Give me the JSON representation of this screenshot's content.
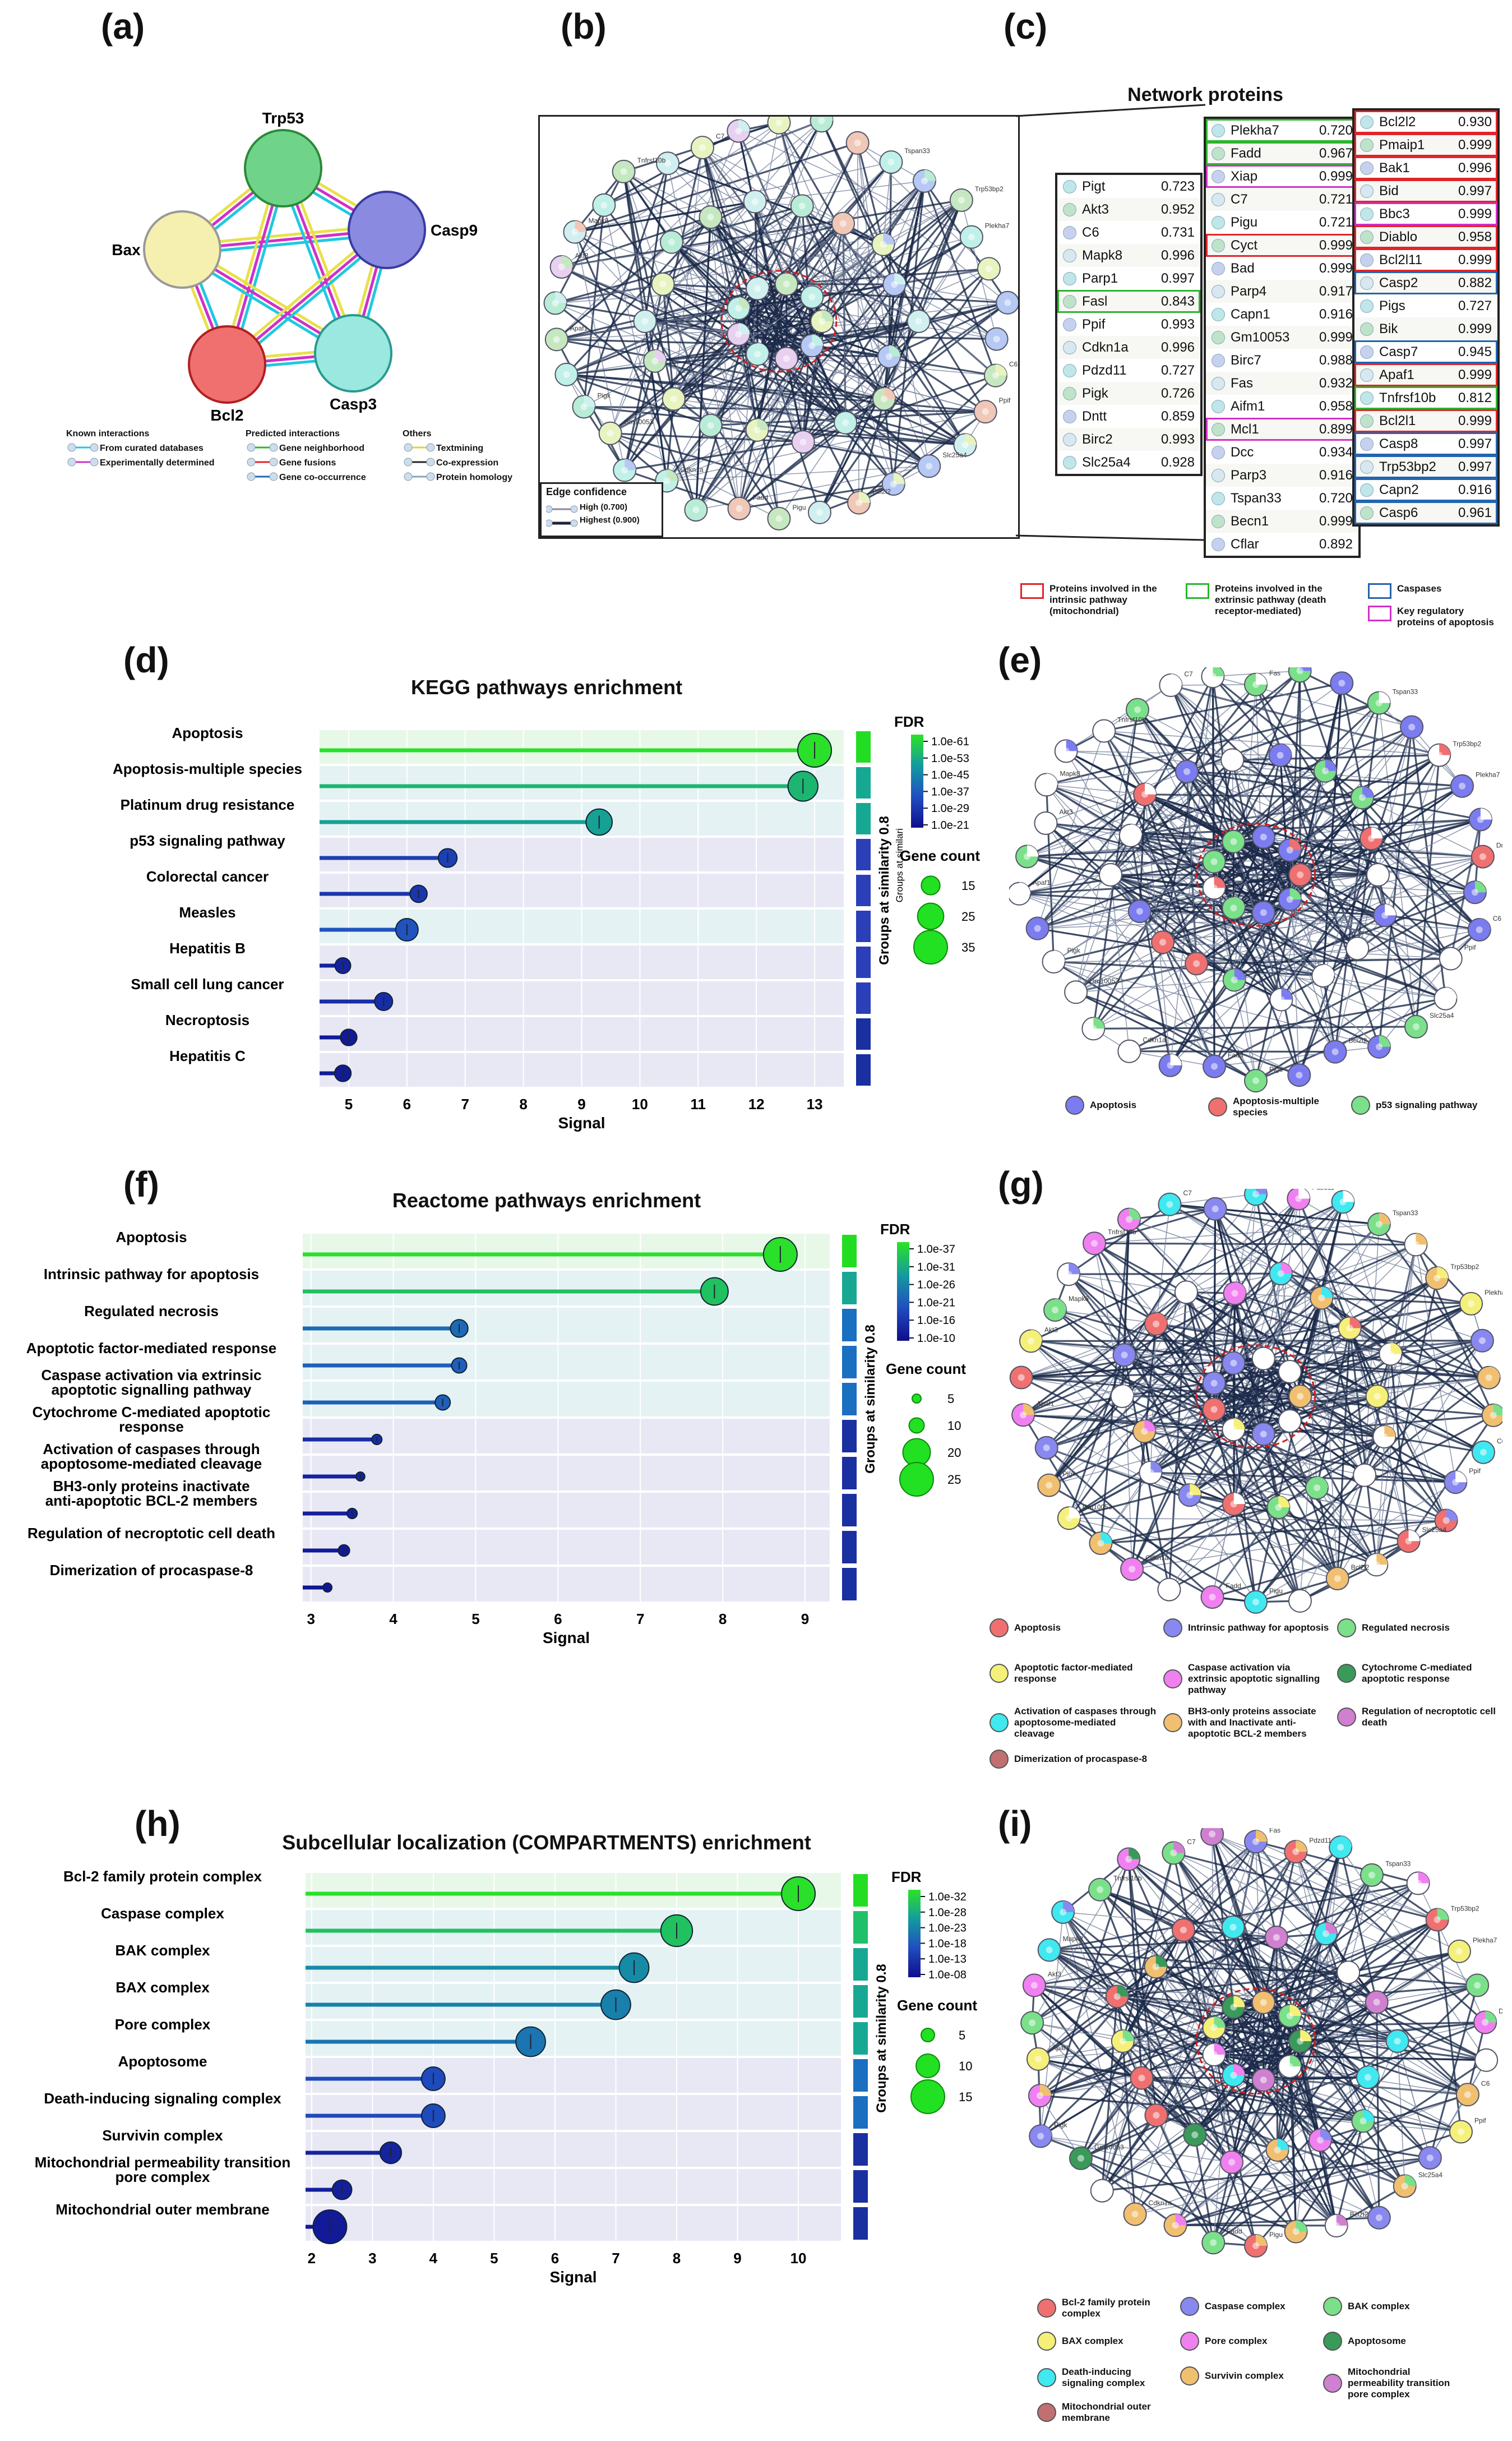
{
  "panel_labels": [
    "(a)",
    "(b)",
    "(c)",
    "(d)",
    "(e)",
    "(f)",
    "(g)",
    "(h)",
    "(i)"
  ],
  "panel_a": {
    "nodes": [
      "Trp53",
      "Bax",
      "Casp9",
      "Bcl2",
      "Casp3"
    ],
    "legend": {
      "known_title": "Known interactions",
      "known": [
        "From curated databases",
        "Experimentally determined"
      ],
      "predicted_title": "Predicted interactions",
      "predicted": [
        "Gene neighborhood",
        "Gene fusions",
        "Gene co-occurrence"
      ],
      "others_title": "Others",
      "others": [
        "Textmining",
        "Co-expression",
        "Protein homology"
      ]
    }
  },
  "panel_b": {
    "edge_title": "Edge confidence",
    "edges": [
      "High (0.700)",
      "Highest (0.900)"
    ],
    "node_labels": [
      "Fas",
      "Pdzd11",
      "Tspan33",
      "Trp53bp2",
      "Plekha7",
      "Dntt",
      "C6",
      "Ppif",
      "Slc25a4",
      "Bcl2l2",
      "Pigu",
      "Fadd",
      "Cdkn1a",
      "Gm10053",
      "Pigk",
      "Apaf1",
      "Akt3",
      "Mapk8",
      "Tnfrsf10b",
      "C7"
    ]
  },
  "panel_c": {
    "title": "Network proteins",
    "col1": [
      [
        "Pigt",
        "0.723"
      ],
      [
        "Akt3",
        "0.952"
      ],
      [
        "C6",
        "0.731"
      ],
      [
        "Mapk8",
        "0.996"
      ],
      [
        "Parp1",
        "0.997"
      ],
      [
        "Fasl",
        "0.843"
      ],
      [
        "Ppif",
        "0.993"
      ],
      [
        "Cdkn1a",
        "0.996"
      ],
      [
        "Pdzd11",
        "0.727"
      ],
      [
        "Pigk",
        "0.726"
      ],
      [
        "Dntt",
        "0.859"
      ],
      [
        "Birc2",
        "0.993"
      ],
      [
        "Slc25a4",
        "0.928"
      ]
    ],
    "col2": [
      [
        "Plekha7",
        "0.720"
      ],
      [
        "Fadd",
        "0.967"
      ],
      [
        "Xiap",
        "0.999"
      ],
      [
        "C7",
        "0.721"
      ],
      [
        "Pigu",
        "0.721"
      ],
      [
        "Cyct",
        "0.999"
      ],
      [
        "Bad",
        "0.999"
      ],
      [
        "Parp4",
        "0.917"
      ],
      [
        "Capn1",
        "0.916"
      ],
      [
        "Gm10053",
        "0.999"
      ],
      [
        "Birc7",
        "0.988"
      ],
      [
        "Fas",
        "0.932"
      ],
      [
        "Aifm1",
        "0.958"
      ],
      [
        "Mcl1",
        "0.899"
      ],
      [
        "Dcc",
        "0.934"
      ],
      [
        "Parp3",
        "0.916"
      ],
      [
        "Tspan33",
        "0.720"
      ],
      [
        "Becn1",
        "0.999"
      ],
      [
        "Cflar",
        "0.892"
      ]
    ],
    "col3": [
      [
        "Bcl2l2",
        "0.930"
      ],
      [
        "Pmaip1",
        "0.999"
      ],
      [
        "Bak1",
        "0.996"
      ],
      [
        "Bid",
        "0.997"
      ],
      [
        "Bbc3",
        "0.999"
      ],
      [
        "Diablo",
        "0.958"
      ],
      [
        "Bcl2l11",
        "0.999"
      ],
      [
        "Casp2",
        "0.882"
      ],
      [
        "Pigs",
        "0.727"
      ],
      [
        "Bik",
        "0.999"
      ],
      [
        "Casp7",
        "0.945"
      ],
      [
        "Apaf1",
        "0.999"
      ],
      [
        "Tnfrsf10b",
        "0.812"
      ],
      [
        "Bcl2l1",
        "0.999"
      ],
      [
        "Casp8",
        "0.997"
      ],
      [
        "Trp53bp2",
        "0.997"
      ],
      [
        "Capn2",
        "0.916"
      ],
      [
        "Casp6",
        "0.961"
      ]
    ],
    "legend": [
      "Proteins involved in the intrinsic pathway (mitochondrial)",
      "Proteins involved in the extrinsic pathway (death receptor-mediated)",
      "Caspases",
      "Key regulatory proteins of apoptosis"
    ],
    "legend_colors": [
      "#e0252a",
      "#2cb52c",
      "#2464b0",
      "#d030c8"
    ]
  },
  "chart_data": [
    {
      "type": "bar",
      "title": "KEGG pathways enrichment",
      "categories": [
        "Apoptosis",
        "Apoptosis-multiple species",
        "Platinum drug resistance",
        "p53 signaling pathway",
        "Colorectal cancer",
        "Measles",
        "Hepatitis B",
        "Small cell lung cancer",
        "Necroptosis",
        "Hepatitis C"
      ],
      "values": [
        13.0,
        12.8,
        9.3,
        6.7,
        6.2,
        6.0,
        4.9,
        5.6,
        5.0,
        4.9
      ],
      "fdr_level": [
        1.0,
        0.8,
        0.7,
        0.25,
        0.2,
        0.35,
        0.1,
        0.15,
        0.05,
        0.05
      ],
      "gene_count": [
        35,
        30,
        25,
        15,
        13,
        20,
        11,
        14,
        12,
        12
      ],
      "xlabel": "Signal",
      "xticks": [
        "5",
        "6",
        "7",
        "8",
        "9",
        "10",
        "11",
        "12",
        "13"
      ],
      "xlim": [
        4.5,
        13.5
      ],
      "fdr_title": "FDR",
      "fdr_ticks": [
        "1.0e-61",
        "1.0e-53",
        "1.0e-45",
        "1.0e-37",
        "1.0e-29",
        "1.0e-21"
      ],
      "size_title": "Gene count",
      "size_ticks": [
        "15",
        "25",
        "35"
      ],
      "group_label": "Groups at similarity 0.8",
      "group_label2": "Groups at similari",
      "group_colors": [
        "#22dd22",
        "#17a893",
        "#17a893",
        "#2a3fb8",
        "#2a3fb8",
        "#2a3fb8",
        "#2a3fb8",
        "#2a3fb8",
        "#1a2fa0",
        "#1a2fa0"
      ]
    },
    {
      "type": "bar",
      "title": "Reactome pathways enrichment",
      "categories": [
        "Apoptosis",
        "Intrinsic pathway for apoptosis",
        "Regulated necrosis",
        "Apoptotic factor-mediated response",
        "Caspase activation via extrinsic apoptotic signalling pathway",
        "Cytochrome C-mediated apoptotic response",
        "Activation of caspases through apoptosome-mediated cleavage",
        "BH3-only proteins inactivate anti-apoptotic BCL-2 members",
        "Regulation of necroptotic cell death",
        "Dimerization of procaspase-8"
      ],
      "values": [
        8.7,
        7.9,
        4.8,
        4.8,
        4.6,
        3.8,
        3.6,
        3.5,
        3.4,
        3.2
      ],
      "fdr_level": [
        1.0,
        0.85,
        0.45,
        0.4,
        0.4,
        0.15,
        0.1,
        0.08,
        0.05,
        0.03
      ],
      "gene_count": [
        25,
        20,
        12,
        10,
        10,
        6,
        5,
        6,
        7,
        5
      ],
      "xlabel": "Signal",
      "xticks": [
        "3",
        "4",
        "5",
        "6",
        "7",
        "8",
        "9"
      ],
      "xlim": [
        2.9,
        9.3
      ],
      "fdr_title": "FDR",
      "fdr_ticks": [
        "1.0e-37",
        "1.0e-31",
        "1.0e-26",
        "1.0e-21",
        "1.0e-16",
        "1.0e-10"
      ],
      "size_title": "Gene count",
      "size_ticks": [
        "5",
        "10",
        "20",
        "25"
      ],
      "group_label": "Groups at similarity 0.8",
      "group_colors": [
        "#22dd22",
        "#17a893",
        "#1a6fc0",
        "#1a6fc0",
        "#1a6fc0",
        "#1a2fa0",
        "#1a2fa0",
        "#1a2fa0",
        "#1a2fa0",
        "#1a2fa0"
      ]
    },
    {
      "type": "bar",
      "title": "Subcellular localization (COMPARTMENTS) enrichment",
      "categories": [
        "Bcl-2 family protein complex",
        "Caspase complex",
        "BAK complex",
        "BAX complex",
        "Pore complex",
        "Apoptosome",
        "Death-inducing signaling complex",
        "Survivin complex",
        "Mitochondrial permeability transition pore complex",
        "Mitochondrial outer membrane"
      ],
      "values": [
        10.0,
        8.0,
        7.3,
        7.0,
        5.6,
        4.0,
        4.0,
        3.3,
        2.5,
        2.3
      ],
      "fdr_level": [
        1.0,
        0.85,
        0.6,
        0.55,
        0.5,
        0.3,
        0.3,
        0.1,
        0.08,
        0.05
      ],
      "gene_count": [
        15,
        14,
        13,
        13,
        13,
        10,
        10,
        9,
        8,
        15
      ],
      "xlabel": "Signal",
      "xticks": [
        "2",
        "3",
        "4",
        "5",
        "6",
        "7",
        "8",
        "9",
        "10"
      ],
      "xlim": [
        1.9,
        10.7
      ],
      "fdr_title": "FDR",
      "fdr_ticks": [
        "1.0e-32",
        "1.0e-28",
        "1.0e-23",
        "1.0e-18",
        "1.0e-13",
        "1.0e-08"
      ],
      "size_title": "Gene count",
      "size_ticks": [
        "5",
        "10",
        "15"
      ],
      "group_label": "Groups at similarity 0.8",
      "group_colors": [
        "#22dd22",
        "#1fc06a",
        "#17a893",
        "#17a893",
        "#17a893",
        "#1a6fc0",
        "#1a6fc0",
        "#1a2fa0",
        "#1a2fa0",
        "#1a2fa0"
      ]
    }
  ],
  "panel_e": {
    "legend": [
      [
        "Apoptosis",
        "#7b7cf0"
      ],
      [
        "Apoptosis-multiple species",
        "#f07070"
      ],
      [
        "p53 signaling pathway",
        "#7be08a"
      ]
    ]
  },
  "panel_g": {
    "legend": [
      [
        "Apoptosis",
        "#f07070"
      ],
      [
        "Intrinsic pathway for apoptosis",
        "#8888f0"
      ],
      [
        "Regulated necrosis",
        "#7be08a"
      ],
      [
        "Apoptotic factor-mediated response",
        "#f5f07a"
      ],
      [
        "Caspase activation via extrinsic apoptotic signalling pathway",
        "#f080f0"
      ],
      [
        "Cytochrome C-mediated apoptotic response",
        "#3a9a5a"
      ],
      [
        "Activation of caspases through apoptosome-mediated cleavage",
        "#40e8f0"
      ],
      [
        "BH3-only proteins associate with and Inactivate anti-apoptotic BCL-2 members",
        "#f0c070"
      ],
      [
        "Regulation of necroptotic cell death",
        "#d080d0"
      ],
      [
        "Dimerization of procaspase-8",
        "#c07070"
      ]
    ]
  },
  "panel_i": {
    "legend": [
      [
        "Bcl-2 family protein complex",
        "#f07070"
      ],
      [
        "Caspase complex",
        "#8888f0"
      ],
      [
        "BAK complex",
        "#7be08a"
      ],
      [
        "BAX complex",
        "#f5f07a"
      ],
      [
        "Pore complex",
        "#f080f0"
      ],
      [
        "Apoptosome",
        "#3a9a5a"
      ],
      [
        "Death-inducing signaling complex",
        "#40e8f0"
      ],
      [
        "Survivin complex",
        "#f0c070"
      ],
      [
        "Mitochondrial permeability transition pore complex",
        "#d080d0"
      ],
      [
        "Mitochondrial outer membrane",
        "#c07070"
      ]
    ]
  }
}
